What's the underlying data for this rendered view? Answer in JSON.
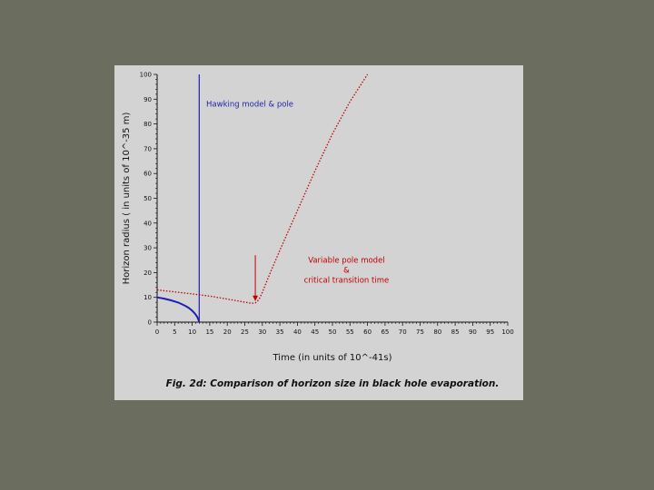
{
  "chart_data": {
    "type": "line",
    "caption": "Fig. 2d:  Comparison of horizon size in black hole evaporation.",
    "xlabel": "Time (in units of 10^-41s)",
    "ylabel": "Horizon radius ( in units of 10^-35 m)",
    "xlim": [
      0,
      100
    ],
    "ylim": [
      0,
      100
    ],
    "xticks": [
      "0",
      "5",
      "10",
      "15",
      "20",
      "25",
      "30",
      "35",
      "40",
      "45",
      "50",
      "55",
      "60",
      "65",
      "70",
      "75",
      "80",
      "85",
      "90",
      "95",
      "100"
    ],
    "yticks": [
      "0",
      "10",
      "20",
      "30",
      "40",
      "50",
      "60",
      "70",
      "80",
      "90",
      "100"
    ],
    "grid": false,
    "series": [
      {
        "name": "Hawking model & pole",
        "color": "#1f1fb0",
        "style": "solid",
        "x": [
          0,
          2,
          4,
          6,
          8,
          9,
          10,
          10.8,
          11.4,
          11.8,
          12.0
        ],
        "y": [
          10,
          9.5,
          8.8,
          7.9,
          6.6,
          5.8,
          4.6,
          3.4,
          2.2,
          1.0,
          0
        ]
      },
      {
        "name": "Variable pole model & critical transition time",
        "color": "#c00000",
        "style": "dotted",
        "x": [
          0,
          5,
          10,
          15,
          20,
          24,
          26,
          27,
          28,
          29,
          30,
          32,
          35,
          40,
          45,
          50,
          55,
          60
        ],
        "y": [
          13,
          12.2,
          11.4,
          10.5,
          9.3,
          8.3,
          7.8,
          7.6,
          7.8,
          9.0,
          12.0,
          19.0,
          29.0,
          45.0,
          61.0,
          76.0,
          89.0,
          100.0
        ]
      }
    ],
    "pole_line": {
      "x": 12,
      "color": "#1f1fb0"
    },
    "annotations": {
      "blue_label": "Hawking model & pole",
      "red_label_lines": [
        "Variable pole model",
        "&",
        "critical transition time"
      ],
      "arrow_x": 28,
      "arrow_y_top": 27,
      "arrow_y_bottom": 8.5
    }
  }
}
